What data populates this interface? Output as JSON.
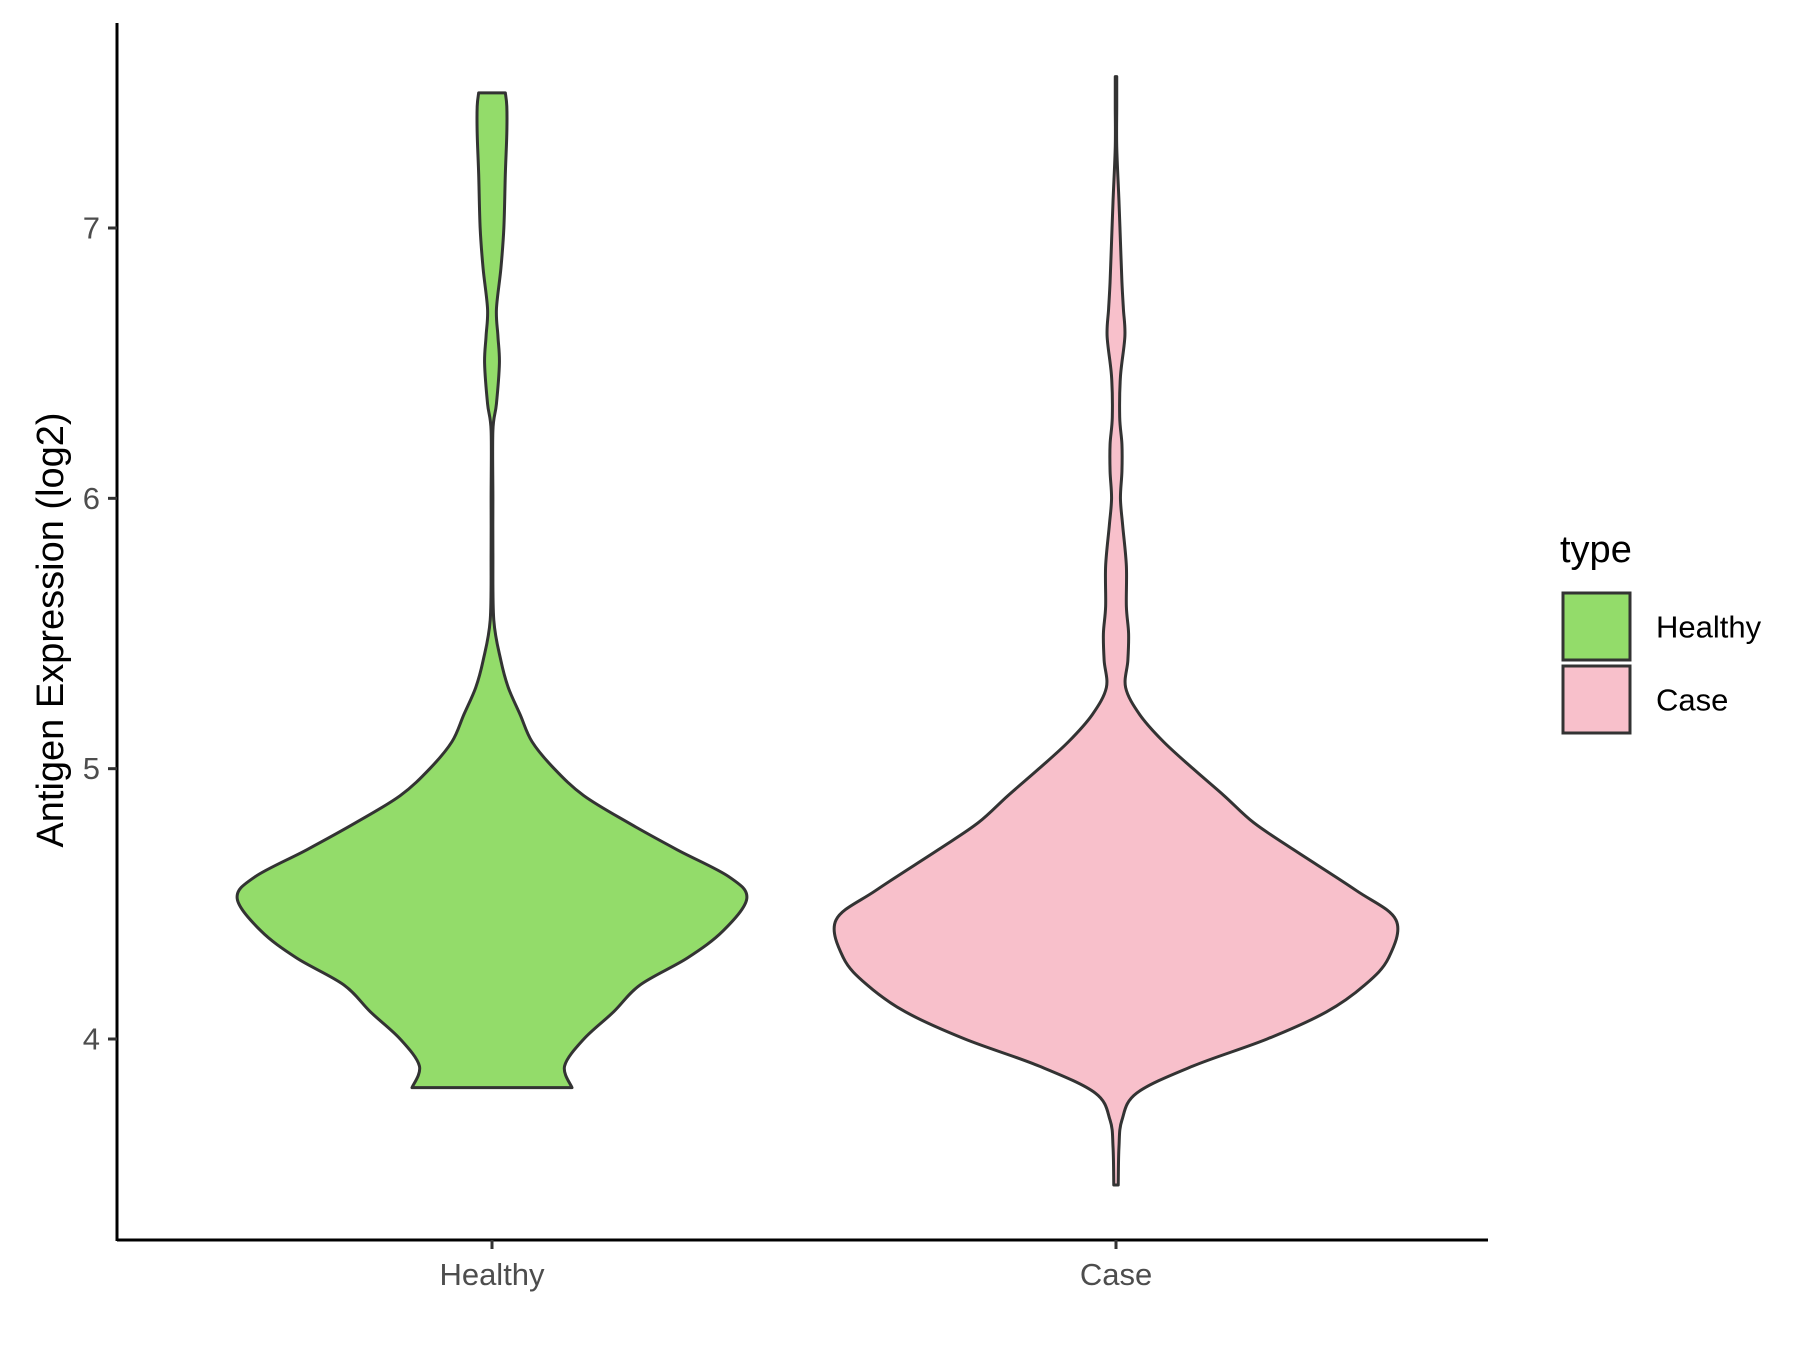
{
  "chart_data": {
    "type": "violin",
    "ylabel": "Antigen Expression (log2)",
    "xlabel": "",
    "ylim": [
      3.3,
      7.8
    ],
    "yticks": [
      4,
      5,
      6,
      7
    ],
    "categories": [
      "Healthy",
      "Case"
    ],
    "legend": {
      "title": "type",
      "position": "right",
      "entries": [
        "Healthy",
        "Case"
      ]
    },
    "grid": false,
    "series": [
      {
        "name": "Healthy",
        "color": "#93dc6a",
        "min": 3.82,
        "max": 7.5,
        "density": [
          [
            3.82,
            0.54
          ],
          [
            3.9,
            0.49
          ],
          [
            4.0,
            0.62
          ],
          [
            4.1,
            0.82
          ],
          [
            4.2,
            1.0
          ],
          [
            4.3,
            1.32
          ],
          [
            4.4,
            1.56
          ],
          [
            4.52,
            1.72
          ],
          [
            4.6,
            1.6
          ],
          [
            4.7,
            1.25
          ],
          [
            4.8,
            0.92
          ],
          [
            4.9,
            0.62
          ],
          [
            5.0,
            0.42
          ],
          [
            5.1,
            0.27
          ],
          [
            5.2,
            0.19
          ],
          [
            5.3,
            0.11
          ],
          [
            5.4,
            0.06
          ],
          [
            5.55,
            0.012
          ],
          [
            5.8,
            0.006
          ],
          [
            6.0,
            0.006
          ],
          [
            6.25,
            0.006
          ],
          [
            6.35,
            0.03
          ],
          [
            6.5,
            0.05
          ],
          [
            6.6,
            0.04
          ],
          [
            6.7,
            0.03
          ],
          [
            6.85,
            0.06
          ],
          [
            7.0,
            0.08
          ],
          [
            7.2,
            0.09
          ],
          [
            7.35,
            0.1
          ],
          [
            7.45,
            0.1
          ],
          [
            7.5,
            0.09
          ]
        ]
      },
      {
        "name": "Case",
        "color": "#f8c0cb",
        "min": 3.46,
        "max": 7.56,
        "density": [
          [
            3.46,
            0.015
          ],
          [
            3.6,
            0.02
          ],
          [
            3.7,
            0.04
          ],
          [
            3.8,
            0.14
          ],
          [
            3.9,
            0.52
          ],
          [
            4.0,
            1.02
          ],
          [
            4.1,
            1.42
          ],
          [
            4.2,
            1.68
          ],
          [
            4.3,
            1.84
          ],
          [
            4.44,
            1.89
          ],
          [
            4.55,
            1.62
          ],
          [
            4.7,
            1.2
          ],
          [
            4.8,
            0.93
          ],
          [
            4.9,
            0.73
          ],
          [
            5.0,
            0.52
          ],
          [
            5.1,
            0.32
          ],
          [
            5.2,
            0.16
          ],
          [
            5.3,
            0.065
          ],
          [
            5.4,
            0.08
          ],
          [
            5.5,
            0.085
          ],
          [
            5.6,
            0.07
          ],
          [
            5.75,
            0.07
          ],
          [
            5.9,
            0.045
          ],
          [
            6.0,
            0.03
          ],
          [
            6.1,
            0.04
          ],
          [
            6.2,
            0.04
          ],
          [
            6.3,
            0.025
          ],
          [
            6.45,
            0.03
          ],
          [
            6.6,
            0.06
          ],
          [
            6.7,
            0.05
          ],
          [
            6.8,
            0.04
          ],
          [
            6.95,
            0.03
          ],
          [
            7.1,
            0.02
          ],
          [
            7.3,
            0.005
          ],
          [
            7.45,
            0.005
          ],
          [
            7.56,
            0.005
          ]
        ]
      }
    ]
  }
}
